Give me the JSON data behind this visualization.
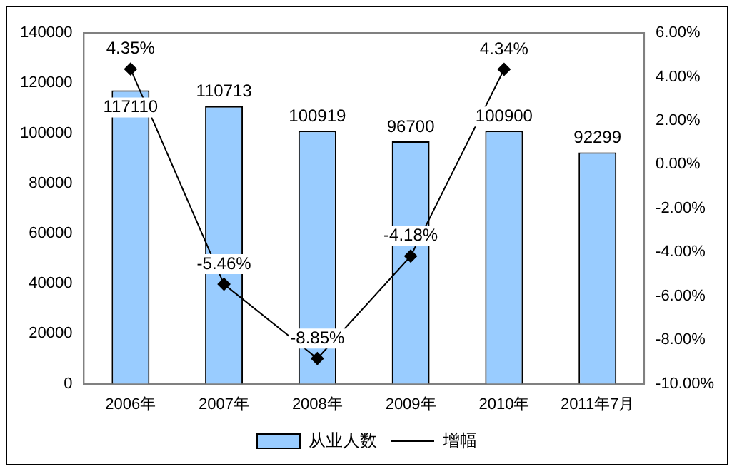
{
  "chart_data": {
    "type": "bar",
    "categories": [
      "2006年",
      "2007年",
      "2008年",
      "2009年",
      "2010年",
      "2011年7月"
    ],
    "series": [
      {
        "name": "从业人数",
        "color": "#99ccff",
        "values": [
          117110,
          110713,
          100919,
          96700,
          100900,
          92299
        ],
        "value_labels": [
          "117110",
          "110713",
          "100919",
          "96700",
          "100900",
          "92299"
        ]
      },
      {
        "name": "增幅",
        "type": "line",
        "axis": "y2",
        "color": "#000000",
        "values": [
          4.35,
          -5.46,
          -8.85,
          -4.18,
          4.34,
          null
        ],
        "value_labels": [
          "4.35%",
          "-5.46%",
          "-8.85%",
          "-4.18%",
          "4.34%",
          null
        ]
      }
    ],
    "ylim": [
      0,
      140000
    ],
    "yticks": [
      0,
      20000,
      40000,
      60000,
      80000,
      100000,
      120000,
      140000
    ],
    "y2lim": [
      -10,
      6
    ],
    "y2ticks": [
      {
        "value": -10,
        "label": "-10.00%"
      },
      {
        "value": -8,
        "label": "-8.00%"
      },
      {
        "value": -6,
        "label": "-6.00%"
      },
      {
        "value": -4,
        "label": "-4.00%"
      },
      {
        "value": -2,
        "label": "-2.00%"
      },
      {
        "value": 0,
        "label": "0.00%"
      },
      {
        "value": 2,
        "label": "2.00%"
      },
      {
        "value": 4,
        "label": "4.00%"
      },
      {
        "value": 6,
        "label": "6.00%"
      }
    ],
    "grid": false,
    "legend": "bottom",
    "marker": "diamond",
    "line_style": "solid"
  }
}
